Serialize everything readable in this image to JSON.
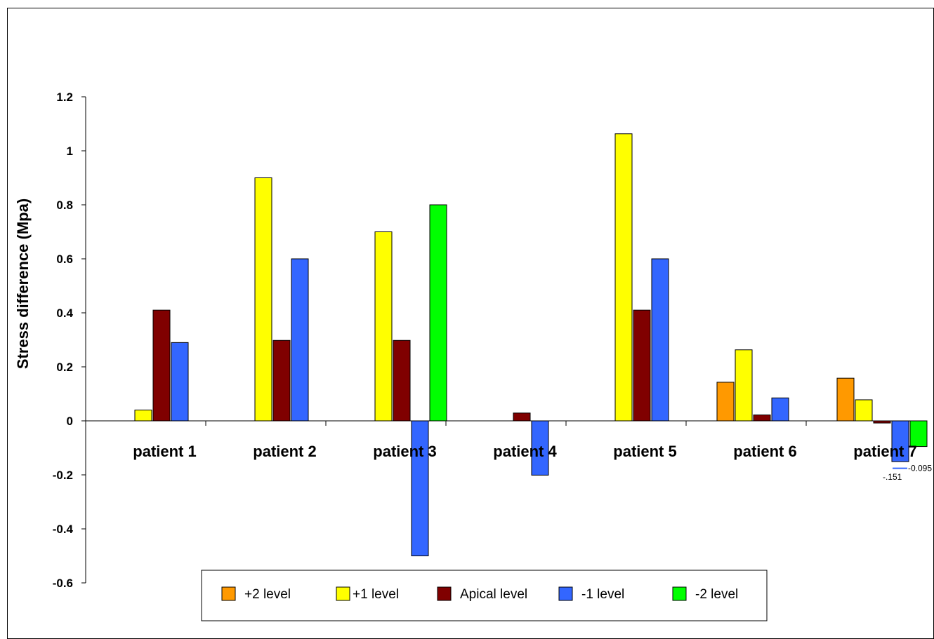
{
  "chart_data": {
    "type": "bar",
    "ylabel": "Stress difference (Mpa)",
    "xlabel": "",
    "ylim": [
      -0.6,
      1.2
    ],
    "y_ticks": [
      "1.2",
      "1",
      "0.8",
      "0.6",
      "0.4",
      "0.2",
      "0",
      "-0.2",
      "-0.4",
      "-0.6"
    ],
    "y_tick_values": [
      1.2,
      1.0,
      0.8,
      0.6,
      0.4,
      0.2,
      0,
      -0.2,
      -0.4,
      -0.6
    ],
    "categories": [
      "patient 1",
      "patient 2",
      "patient 3",
      "patient 4",
      "patient 5",
      "patient 6",
      "patient 7"
    ],
    "series": [
      {
        "name": "+2 level",
        "color": "#FF9900",
        "values": [
          null,
          null,
          null,
          null,
          null,
          0.143,
          0.158
        ]
      },
      {
        "name": "+1 level",
        "color": "#FFFF00",
        "values": [
          0.04,
          0.9,
          0.7,
          null,
          1.063,
          0.263,
          0.078
        ]
      },
      {
        "name": "Apical level",
        "color": "#800000",
        "values": [
          0.41,
          0.298,
          0.298,
          0.029,
          0.41,
          0.022,
          -0.008
        ]
      },
      {
        "name": "-1 level",
        "color": "#3366FF",
        "values": [
          0.29,
          0.6,
          -0.5,
          -0.201,
          0.6,
          0.085,
          -0.151
        ]
      },
      {
        "name": "-2 level",
        "color": "#00FF00",
        "values": [
          null,
          null,
          0.8,
          null,
          null,
          null,
          -0.095
        ]
      }
    ],
    "data_labels": [
      {
        "text": "-0.095",
        "category": "patient 7",
        "series": "-2 level"
      },
      {
        "text": "-.151",
        "category": "patient 7",
        "series": "-1 level"
      }
    ],
    "legend_position": "bottom",
    "grid": false
  }
}
